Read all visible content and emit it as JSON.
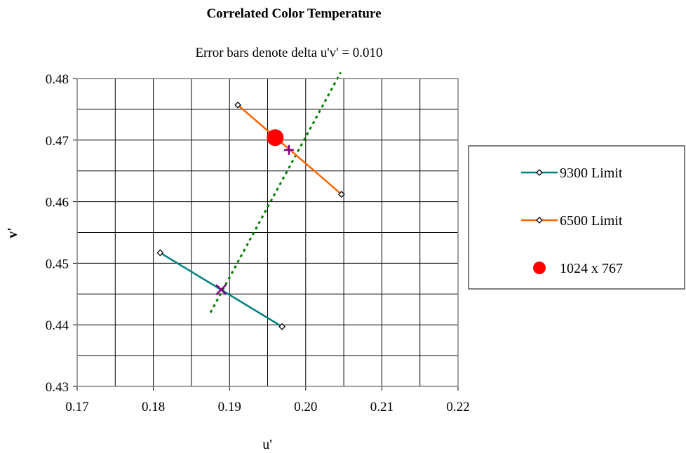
{
  "chart_data": {
    "type": "scatter",
    "title": "Correlated Color Temperature",
    "subtitle": "Error bars denote delta u'v' = 0.010",
    "xlabel": "u'",
    "ylabel": "v'",
    "xlim": [
      0.17,
      0.22
    ],
    "ylim": [
      0.43,
      0.48
    ],
    "x_ticks": [
      "0.17",
      "0.18",
      "0.19",
      "0.20",
      "0.21",
      "0.22"
    ],
    "y_ticks": [
      "0.43",
      "0.44",
      "0.45",
      "0.46",
      "0.47",
      "0.48"
    ],
    "x_tick_values": [
      0.17,
      0.18,
      0.19,
      0.2,
      0.21,
      0.22
    ],
    "y_tick_values": [
      0.43,
      0.44,
      0.45,
      0.46,
      0.47,
      0.48
    ],
    "grid": true,
    "legend_position": "right",
    "series": [
      {
        "name": "9300 Limit",
        "color": "#008080",
        "marker": "diamond",
        "points": [
          [
            0.1809,
            0.4517
          ],
          [
            0.1969,
            0.4397
          ]
        ]
      },
      {
        "name": "6500 Limit",
        "color": "#ff6600",
        "marker": "diamond",
        "points": [
          [
            0.1911,
            0.4757
          ],
          [
            0.2047,
            0.4612
          ]
        ]
      },
      {
        "name": "1024 x 767",
        "color": "#ff0000",
        "marker": "circle",
        "points": [
          [
            0.196,
            0.4704
          ]
        ]
      }
    ],
    "unlabeled_markers": [
      {
        "symbol": "x",
        "point": [
          0.1889,
          0.4457
        ],
        "color": "#800080"
      },
      {
        "symbol": "+",
        "point": [
          0.1978,
          0.4684
        ],
        "color": "#800080"
      }
    ],
    "trendline": {
      "style": "dotted",
      "color": "#008000",
      "points": [
        [
          0.1875,
          0.442
        ],
        [
          0.2046,
          0.481
        ]
      ]
    }
  }
}
